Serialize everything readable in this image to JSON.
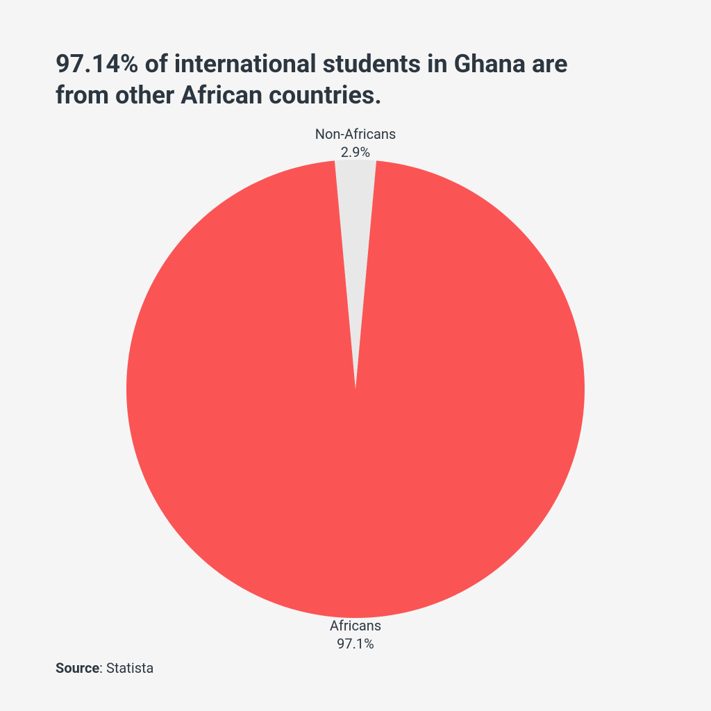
{
  "title": "97.14% of international students in Ghana are from other African countries.",
  "chart": {
    "type": "pie",
    "background_color": "#f5f5f5",
    "title_color": "#2c3640",
    "title_fontsize": 36,
    "label_fontsize": 20,
    "label_color": "#2c3640",
    "radius": 330,
    "slices": [
      {
        "name": "Africans",
        "value": 97.1,
        "display_value": "97.1%",
        "color": "#fb5454"
      },
      {
        "name": "Non-Africans",
        "value": 2.9,
        "display_value": "2.9%",
        "color": "#e8e8e8"
      }
    ]
  },
  "source": {
    "label": "Source",
    "value": "Statista"
  }
}
